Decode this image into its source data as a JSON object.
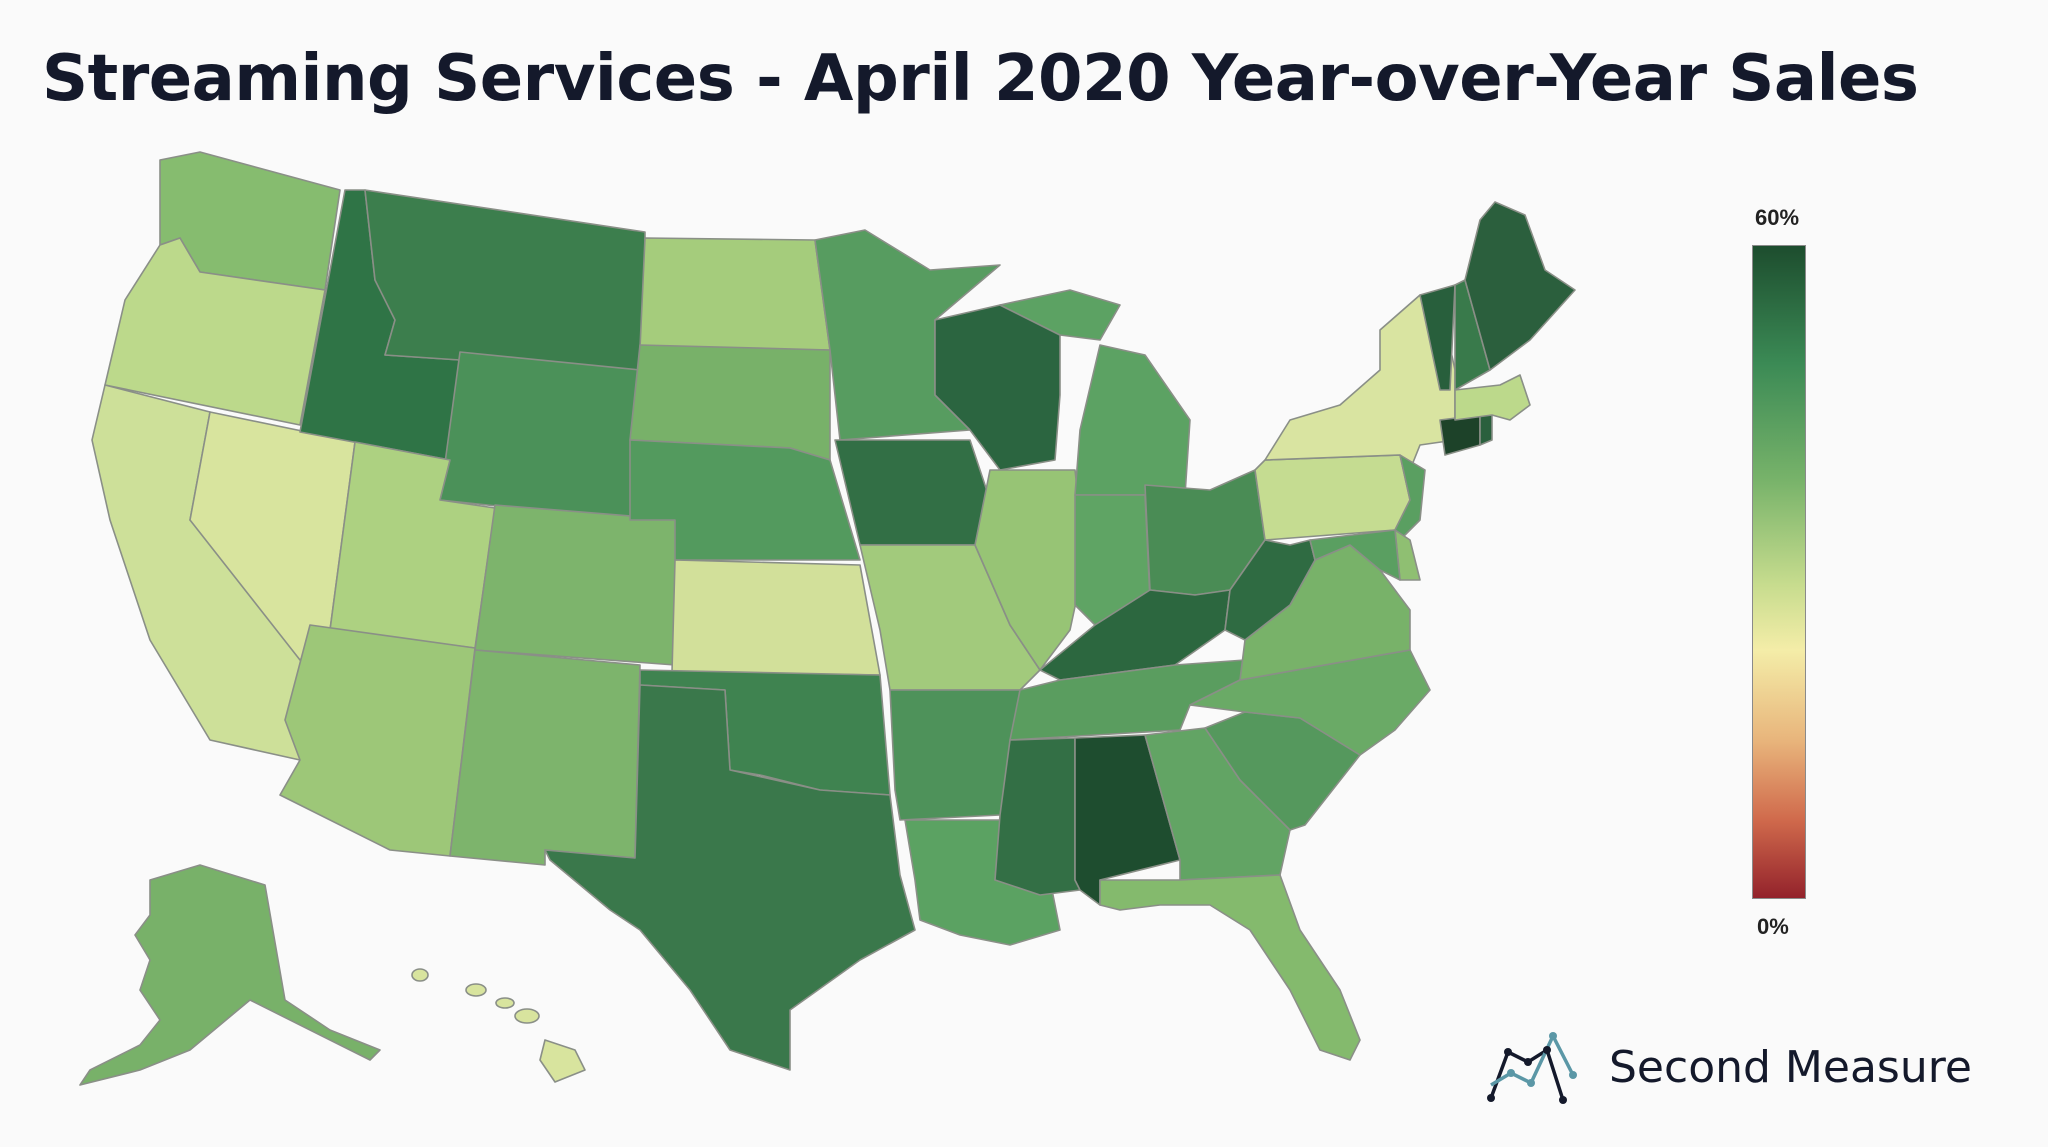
{
  "title": "Streaming Services - April 2020 Year-over-Year Sales",
  "legend": {
    "max_label": "60%",
    "min_label": "0%",
    "min_value": 0,
    "max_value": 60,
    "scale_colors": [
      "#1d4d2e",
      "#3b8a55",
      "#78b36a",
      "#c7dc8e",
      "#f4eda8",
      "#e8b47b",
      "#d06a4c",
      "#93222b"
    ]
  },
  "brand": {
    "name": "Second Measure",
    "logo_icon": "line-chart-logo-icon"
  },
  "state_colors": {
    "WA": "#86bc6f",
    "OR": "#bcd98b",
    "CA": "#cde099",
    "NV": "#d8e49e",
    "ID": "#2f7446",
    "MT": "#3c7e4d",
    "WY": "#4b9159",
    "UT": "#add181",
    "AZ": "#9dc778",
    "CO": "#7db46c",
    "NM": "#7db46c",
    "ND": "#a5cc7c",
    "SD": "#78b169",
    "NE": "#539a5e",
    "KS": "#d2e09a",
    "OK": "#3f8350",
    "TX": "#3a784b",
    "MN": "#579c60",
    "IA": "#326f45",
    "MO": "#a2ca7c",
    "AR": "#4e925a",
    "LA": "#5ba262",
    "WI": "#2b6540",
    "IL": "#97c475",
    "MI": "#5ca263",
    "IN": "#5fa464",
    "OH": "#4a8c55",
    "KY": "#2c673f",
    "TN": "#5a9d5f",
    "MS": "#336f45",
    "AL": "#1e4d2f",
    "GA": "#62a464",
    "FL": "#84ba6d",
    "SC": "#55985d",
    "NC": "#6aaa66",
    "VA": "#78b269",
    "WV": "#2f6b42",
    "PA": "#c5dc91",
    "NY": "#d9e4a1",
    "VT": "#285f3c",
    "NH": "#397a4b",
    "ME": "#2b5f3d",
    "MA": "#bcd98b",
    "RI": "#2a603d",
    "CT": "#1d4229",
    "NJ": "#5a9f61",
    "DE": "#8fbf72",
    "MD": "#5a9f61",
    "AK": "#78b169",
    "HI": "#d8e49e"
  }
}
